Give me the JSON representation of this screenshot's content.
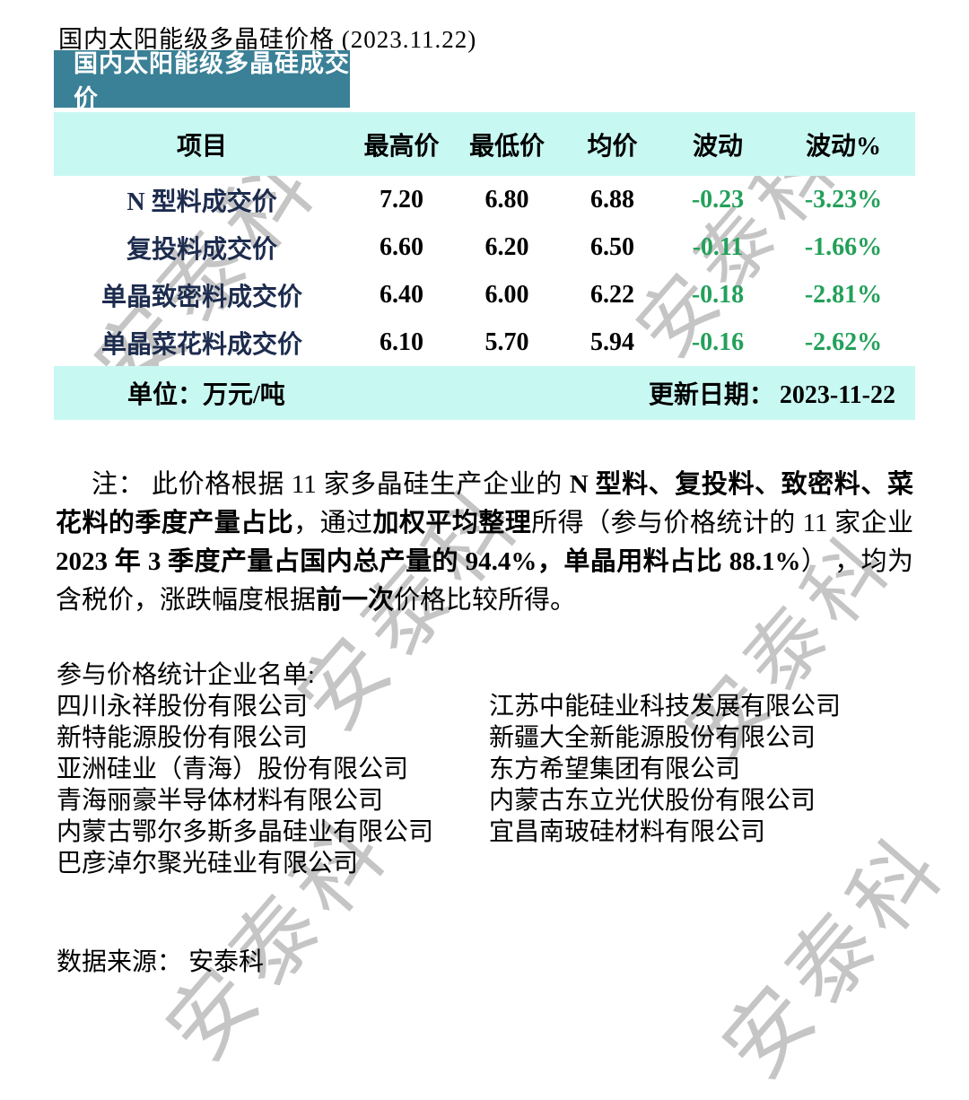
{
  "header": {
    "title": "国内太阳能级多晶硅价格 (2023.11.22)",
    "badge": "国内太阳能级多晶硅成交价"
  },
  "table": {
    "headers": [
      "项目",
      "最高价",
      "最低价",
      "均价",
      "波动",
      "波动%"
    ],
    "rows": [
      {
        "item": "N 型料成交价",
        "high": "7.20",
        "low": "6.80",
        "avg": "6.88",
        "change": "-0.23",
        "change_pct": "-3.23%"
      },
      {
        "item": "复投料成交价",
        "high": "6.60",
        "low": "6.20",
        "avg": "6.50",
        "change": "-0.11",
        "change_pct": "-1.66%"
      },
      {
        "item": "单晶致密料成交价",
        "high": "6.40",
        "low": "6.00",
        "avg": "6.22",
        "change": "-0.18",
        "change_pct": "-2.81%"
      },
      {
        "item": "单晶菜花料成交价",
        "high": "6.10",
        "low": "5.70",
        "avg": "5.94",
        "change": "-0.16",
        "change_pct": "-2.62%"
      }
    ],
    "unit_label": "单位：万元/吨",
    "update_label": "更新日期：",
    "update_date": "2023-11-22"
  },
  "note": {
    "segments": [
      {
        "text": "注： 此价格根据 11 家多晶硅生产企业的 ",
        "bold": false
      },
      {
        "text": "N 型料、复投料、致密料、菜花料",
        "bold": true
      },
      {
        "text": "的季度产量占比",
        "bold": true
      },
      {
        "text": "，通过",
        "bold": false
      },
      {
        "text": "加权平均整理",
        "bold": true
      },
      {
        "text": "所得（参与价格统计的 11 家企业 ",
        "bold": false
      },
      {
        "text": "2023 年 3 季度产量占国内总产量的 94.4%，单晶用料占比 88.1%",
        "bold": true
      },
      {
        "text": "） ，均为含税价，涨跌幅度根据",
        "bold": false
      },
      {
        "text": "前一次",
        "bold": true
      },
      {
        "text": "价格比较所得。",
        "bold": false
      }
    ]
  },
  "companies": {
    "heading": "参与价格统计企业名单:",
    "left": [
      "四川永祥股份有限公司",
      "新特能源股份有限公司",
      "亚洲硅业（青海）股份有限公司",
      "青海丽豪半导体材料有限公司",
      "内蒙古鄂尔多斯多晶硅业有限公司",
      "巴彦淖尔聚光硅业有限公司"
    ],
    "right": [
      "江苏中能硅业科技发展有限公司",
      "新疆大全新能源股份有限公司",
      "东方希望集团有限公司",
      "内蒙古东立光伏股份有限公司",
      "宜昌南玻硅材料有限公司"
    ]
  },
  "source": {
    "label": "数据来源： 安泰科"
  },
  "watermark": {
    "text": "安泰科"
  },
  "colors": {
    "badge_teal": "#3a8096",
    "band_cyan": "#c8f8f2",
    "negative_green": "#23a05a",
    "item_navy": "#1d2c4e",
    "watermark_gray": "#c5c5c5"
  }
}
